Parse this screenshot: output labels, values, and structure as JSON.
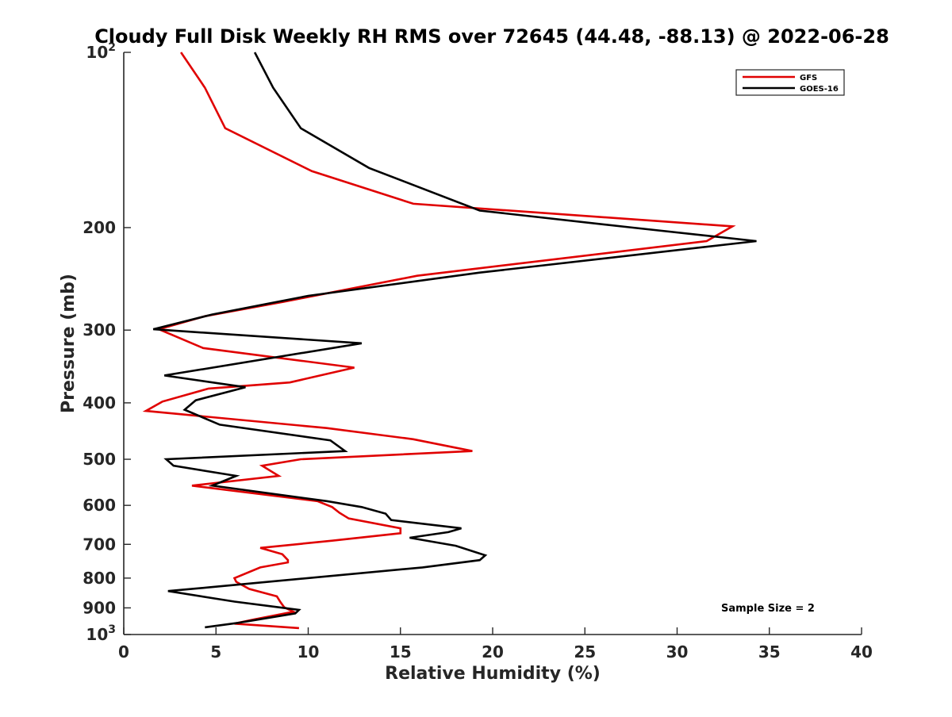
{
  "chart_data": {
    "type": "line",
    "title": "Cloudy Full Disk Weekly RH RMS over 72645 (44.48, -88.13) @ 2022-06-28",
    "xlabel": "Relative Humidity (%)",
    "ylabel": "Pressure (mb)",
    "xlim": [
      0,
      40
    ],
    "ylim": [
      100,
      1000
    ],
    "yscale": "log",
    "y_reversed": true,
    "grid": false,
    "legend_position": "top-right",
    "x_ticks": [
      "0",
      "5",
      "10",
      "15",
      "20",
      "25",
      "30",
      "35",
      "40"
    ],
    "x_tick_values": [
      0,
      5,
      10,
      15,
      20,
      25,
      30,
      35,
      40
    ],
    "y_ticks": [
      {
        "value": 100,
        "base": "10",
        "exp": "2"
      },
      {
        "value": 200,
        "label": "200"
      },
      {
        "value": 300,
        "label": "300"
      },
      {
        "value": 400,
        "label": "400"
      },
      {
        "value": 500,
        "label": "500"
      },
      {
        "value": 600,
        "label": "600"
      },
      {
        "value": 700,
        "label": "700"
      },
      {
        "value": 800,
        "label": "800"
      },
      {
        "value": 900,
        "label": "900"
      },
      {
        "value": 1000,
        "base": "10",
        "exp": "3"
      }
    ],
    "annotation": "Sample Size = 2",
    "series": [
      {
        "name": "GFS",
        "color": "#e00000",
        "points": [
          [
            3.1,
            100
          ],
          [
            4.4,
            115
          ],
          [
            5.5,
            135
          ],
          [
            10.2,
            160
          ],
          [
            15.7,
            182
          ],
          [
            33.0,
            199
          ],
          [
            31.6,
            211
          ],
          [
            15.9,
            242
          ],
          [
            8.7,
            268
          ],
          [
            4.4,
            284
          ],
          [
            1.9,
            299
          ],
          [
            4.3,
            322
          ],
          [
            12.5,
            348
          ],
          [
            9.0,
            369
          ],
          [
            4.6,
            378
          ],
          [
            2.1,
            398
          ],
          [
            1.2,
            413
          ],
          [
            11.0,
            442
          ],
          [
            15.7,
            462
          ],
          [
            18.9,
            484
          ],
          [
            9.6,
            500
          ],
          [
            7.5,
            513
          ],
          [
            8.4,
            534
          ],
          [
            3.7,
            555
          ],
          [
            10.5,
            590
          ],
          [
            11.3,
            604
          ],
          [
            11.7,
            618
          ],
          [
            12.2,
            632
          ],
          [
            15.0,
            657
          ],
          [
            15.0,
            670
          ],
          [
            11.3,
            690
          ],
          [
            7.4,
            710
          ],
          [
            8.6,
            728
          ],
          [
            8.9,
            745
          ],
          [
            8.9,
            752
          ],
          [
            7.4,
            767
          ],
          [
            6.0,
            800
          ],
          [
            6.1,
            812
          ],
          [
            6.8,
            835
          ],
          [
            8.3,
            860
          ],
          [
            8.5,
            880
          ],
          [
            8.7,
            898
          ],
          [
            9.2,
            914
          ],
          [
            7.0,
            943
          ],
          [
            6.0,
            958
          ],
          [
            9.5,
            975
          ]
        ]
      },
      {
        "name": "GOES-16",
        "color": "#000000",
        "points": [
          [
            7.1,
            100
          ],
          [
            8.1,
            115
          ],
          [
            9.6,
            135
          ],
          [
            13.3,
            158
          ],
          [
            19.3,
            187
          ],
          [
            27.6,
            200
          ],
          [
            34.3,
            211
          ],
          [
            19.3,
            239
          ],
          [
            10.0,
            262
          ],
          [
            4.8,
            282
          ],
          [
            1.6,
            299
          ],
          [
            12.9,
            316
          ],
          [
            2.2,
            359
          ],
          [
            6.6,
            376
          ],
          [
            3.9,
            396
          ],
          [
            3.3,
            411
          ],
          [
            5.2,
            436
          ],
          [
            11.2,
            464
          ],
          [
            12.0,
            484
          ],
          [
            2.3,
            500
          ],
          [
            2.7,
            513
          ],
          [
            6.1,
            534
          ],
          [
            4.8,
            555
          ],
          [
            11.0,
            590
          ],
          [
            12.9,
            604
          ],
          [
            14.2,
            620
          ],
          [
            14.5,
            636
          ],
          [
            18.3,
            657
          ],
          [
            17.6,
            667
          ],
          [
            15.5,
            682
          ],
          [
            18.0,
            704
          ],
          [
            19.6,
            731
          ],
          [
            19.3,
            745
          ],
          [
            16.2,
            767
          ],
          [
            4.6,
            830
          ],
          [
            2.4,
            842
          ],
          [
            6.0,
            878
          ],
          [
            9.5,
            907
          ],
          [
            9.3,
            920
          ],
          [
            6.2,
            955
          ],
          [
            4.4,
            972
          ]
        ]
      }
    ]
  }
}
